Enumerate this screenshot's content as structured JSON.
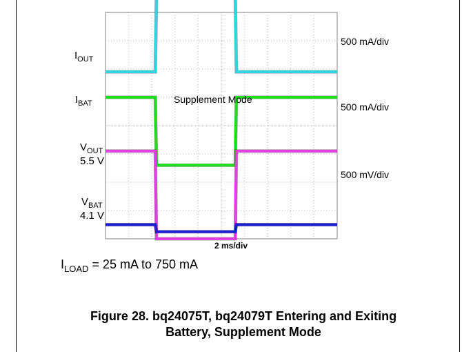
{
  "labels": {
    "iout": {
      "main": "I",
      "sub": "OUT"
    },
    "ibat": {
      "main": "I",
      "sub": "BAT"
    },
    "vout": {
      "main": "V",
      "sub": "OUT",
      "level": "5.5 V"
    },
    "vbat": {
      "main": "V",
      "sub": "BAT",
      "level": "4.1 V"
    },
    "mode_annotation": "Supplement Mode"
  },
  "scales": {
    "iout": "500 mA/div",
    "ibat": "500 mA/div",
    "voltage": "500 mV/div",
    "time": "2 ms/div"
  },
  "load": {
    "main": "I",
    "sub": "LOAD",
    "rest": " = 25 mA to 750 mA"
  },
  "caption": {
    "line1": "Figure 28. bq24075T, bq24079T Entering and Exiting",
    "line2": "Battery, Supplement Mode"
  },
  "chart_data": {
    "type": "line",
    "title": "",
    "xlabel": "2 ms/div",
    "x_divisions": 10,
    "y_divisions": 8,
    "grid": true,
    "x_unit": "div",
    "series": [
      {
        "name": "IOUT",
        "color": "#2fd6e0",
        "x": [
          0,
          2.15,
          2.2,
          5.6,
          5.65,
          10
        ],
        "y": [
          1.9,
          1.9,
          4.6,
          4.6,
          1.9,
          1.9
        ]
      },
      {
        "name": "IBAT",
        "color": "#1fdc1f",
        "x": [
          0,
          2.15,
          2.2,
          5.6,
          5.65,
          10
        ],
        "y": [
          1.0,
          1.0,
          -1.4,
          -1.4,
          1.0,
          1.0
        ]
      },
      {
        "name": "VOUT",
        "color": "#e040e0",
        "x": [
          0,
          2.15,
          2.2,
          5.6,
          5.65,
          10
        ],
        "y": [
          -0.9,
          -0.9,
          -4.0,
          -4.0,
          -0.9,
          -0.9
        ]
      },
      {
        "name": "VBAT",
        "color": "#1e1ed2",
        "x": [
          0,
          2.15,
          2.2,
          5.6,
          5.65,
          10
        ],
        "y": [
          -3.5,
          -3.5,
          -3.75,
          -3.75,
          -3.5,
          -3.5
        ]
      }
    ],
    "colors": {
      "grid": "#b4b4b4",
      "trace_outline": "#000000"
    }
  }
}
